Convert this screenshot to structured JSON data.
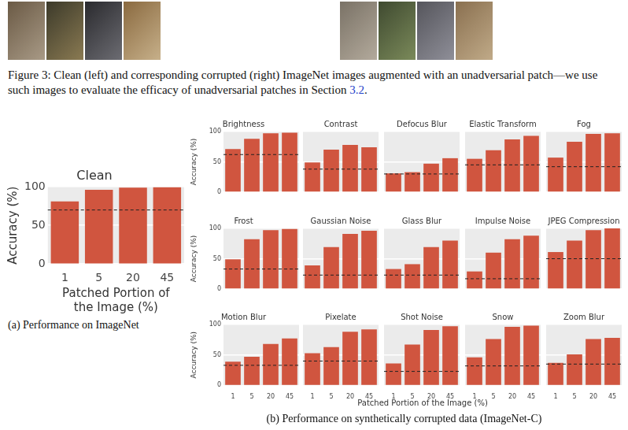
{
  "caption": {
    "text_before": "Figure 3: Clean (left) and corresponding corrupted (right) ImageNet images augmented with an unadversarial patch—we use such images to evaluate the efficacy of unadversarial patches in Section ",
    "reference": "3.2",
    "text_after": "."
  },
  "panel_captions": [
    "(a) Performance on ImageNet",
    "(b) Performance on synthetically corrupted data (ImageNet-C)"
  ],
  "shared_x_label": "Patched Portion of the Image (%)",
  "chart_data": [
    {
      "type": "bar",
      "title": "Clean",
      "categories": [
        "1",
        "5",
        "20",
        "45"
      ],
      "values": [
        81,
        96,
        99,
        99.5
      ],
      "baseline": 70,
      "color": "#d0553f",
      "ylim": [
        0,
        100
      ],
      "yticks": [
        0,
        50,
        100
      ],
      "grid": true,
      "x_label": "Patched Portion of the Image (%)",
      "y_label": "Accuracy (%)"
    },
    {
      "type": "bar",
      "title": "Brightness",
      "categories": [
        "1",
        "5",
        "20",
        "45"
      ],
      "values": [
        71,
        88,
        97,
        98
      ],
      "baseline": 62,
      "color": "#d0553f",
      "ylim": [
        0,
        100
      ],
      "yticks": [
        0,
        50,
        100
      ],
      "grid": true,
      "y_label": "Accuracy (%)",
      "tick_labels": "y"
    },
    {
      "type": "bar",
      "title": "Contrast",
      "categories": [
        "1",
        "5",
        "20",
        "45"
      ],
      "values": [
        49,
        70,
        78,
        74
      ],
      "baseline": 38,
      "color": "#d0553f",
      "ylim": [
        0,
        100
      ],
      "yticks": [
        0,
        50,
        100
      ],
      "grid": true,
      "tick_labels": false
    },
    {
      "type": "bar",
      "title": "Defocus Blur",
      "categories": [
        "1",
        "5",
        "20",
        "45"
      ],
      "values": [
        31,
        33,
        47,
        56
      ],
      "baseline": 30,
      "color": "#d0553f",
      "ylim": [
        0,
        100
      ],
      "yticks": [
        0,
        50,
        100
      ],
      "grid": true,
      "tick_labels": false
    },
    {
      "type": "bar",
      "title": "Elastic Transform",
      "categories": [
        "1",
        "5",
        "20",
        "45"
      ],
      "values": [
        55,
        69,
        87,
        93
      ],
      "baseline": 45,
      "color": "#d0553f",
      "ylim": [
        0,
        100
      ],
      "yticks": [
        0,
        50,
        100
      ],
      "grid": true,
      "tick_labels": false
    },
    {
      "type": "bar",
      "title": "Fog",
      "categories": [
        "1",
        "5",
        "20",
        "45"
      ],
      "values": [
        57,
        83,
        96,
        97
      ],
      "baseline": 42,
      "color": "#d0553f",
      "ylim": [
        0,
        100
      ],
      "yticks": [
        0,
        50,
        100
      ],
      "grid": true,
      "tick_labels": false
    },
    {
      "type": "bar",
      "title": "Frost",
      "categories": [
        "1",
        "5",
        "20",
        "45"
      ],
      "values": [
        49,
        82,
        97,
        99
      ],
      "baseline": 33,
      "color": "#d0553f",
      "ylim": [
        0,
        100
      ],
      "yticks": [
        0,
        50,
        100
      ],
      "grid": true,
      "y_label": "Accuracy (%)",
      "tick_labels": "y"
    },
    {
      "type": "bar",
      "title": "Gaussian Noise",
      "categories": [
        "1",
        "5",
        "20",
        "45"
      ],
      "values": [
        39,
        69,
        91,
        96
      ],
      "baseline": 23,
      "color": "#d0553f",
      "ylim": [
        0,
        100
      ],
      "yticks": [
        0,
        50,
        100
      ],
      "grid": true,
      "tick_labels": false
    },
    {
      "type": "bar",
      "title": "Glass Blur",
      "categories": [
        "1",
        "5",
        "20",
        "45"
      ],
      "values": [
        33,
        41,
        69,
        80
      ],
      "baseline": 23,
      "color": "#d0553f",
      "ylim": [
        0,
        100
      ],
      "yticks": [
        0,
        50,
        100
      ],
      "grid": true,
      "tick_labels": false
    },
    {
      "type": "bar",
      "title": "Impulse Noise",
      "categories": [
        "1",
        "5",
        "20",
        "45"
      ],
      "values": [
        29,
        60,
        82,
        88
      ],
      "baseline": 17,
      "color": "#d0553f",
      "ylim": [
        0,
        100
      ],
      "yticks": [
        0,
        50,
        100
      ],
      "grid": true,
      "tick_labels": false
    },
    {
      "type": "bar",
      "title": "JPEG Compression",
      "categories": [
        "1",
        "5",
        "20",
        "45"
      ],
      "values": [
        61,
        80,
        97,
        100
      ],
      "baseline": 50,
      "color": "#d0553f",
      "ylim": [
        0,
        100
      ],
      "yticks": [
        0,
        50,
        100
      ],
      "grid": true,
      "tick_labels": false
    },
    {
      "type": "bar",
      "title": "Motion Blur",
      "categories": [
        "1",
        "5",
        "20",
        "45"
      ],
      "values": [
        39,
        47,
        68,
        77
      ],
      "baseline": 33,
      "color": "#d0553f",
      "ylim": [
        0,
        100
      ],
      "yticks": [
        0,
        50,
        100
      ],
      "grid": true,
      "y_label": "Accuracy (%)"
    },
    {
      "type": "bar",
      "title": "Pixelate",
      "categories": [
        "1",
        "5",
        "20",
        "45"
      ],
      "values": [
        53,
        63,
        88,
        92
      ],
      "baseline": 40,
      "color": "#d0553f",
      "ylim": [
        0,
        100
      ],
      "yticks": [
        0,
        50,
        100
      ],
      "grid": true,
      "tick_labels": "x"
    },
    {
      "type": "bar",
      "title": "Shot Noise",
      "categories": [
        "1",
        "5",
        "20",
        "45"
      ],
      "values": [
        36,
        67,
        91,
        97
      ],
      "baseline": 23,
      "color": "#d0553f",
      "ylim": [
        0,
        100
      ],
      "yticks": [
        0,
        50,
        100
      ],
      "grid": true,
      "tick_labels": "x"
    },
    {
      "type": "bar",
      "title": "Snow",
      "categories": [
        "1",
        "5",
        "20",
        "45"
      ],
      "values": [
        46,
        76,
        96,
        98
      ],
      "baseline": 32,
      "color": "#d0553f",
      "ylim": [
        0,
        100
      ],
      "yticks": [
        0,
        50,
        100
      ],
      "grid": true,
      "tick_labels": "x"
    },
    {
      "type": "bar",
      "title": "Zoom Blur",
      "categories": [
        "1",
        "5",
        "20",
        "45"
      ],
      "values": [
        37,
        51,
        76,
        78
      ],
      "baseline": 35,
      "color": "#d0553f",
      "ylim": [
        0,
        100
      ],
      "yticks": [
        0,
        50,
        100
      ],
      "grid": true,
      "tick_labels": "x"
    }
  ]
}
